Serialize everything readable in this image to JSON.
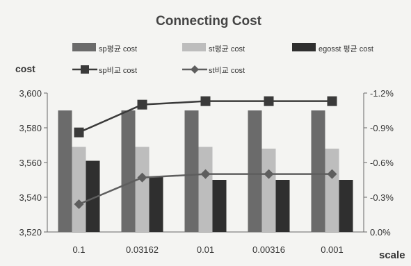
{
  "chart_data": {
    "type": "bar",
    "title": "Connecting Cost",
    "ylabel": "cost",
    "xlabel": "scale",
    "categories": [
      "0.1",
      "0.03162",
      "0.01",
      "0.00316",
      "0.001"
    ],
    "ylim": [
      3520,
      3600
    ],
    "y_ticks": [
      "3,520",
      "3,540",
      "3,560",
      "3,580",
      "3,600"
    ],
    "y2lim": [
      0.0,
      1.2
    ],
    "y2_ticks": [
      "0.0%",
      "-0.3%",
      "-0.6%",
      "-0.9%",
      "-1.2%"
    ],
    "series": [
      {
        "name": "sp평균 cost",
        "kind": "bar",
        "axis": "left",
        "color": "#6b6b6b",
        "values": [
          3590,
          3590,
          3590,
          3590,
          3590
        ]
      },
      {
        "name": "st평균 cost",
        "kind": "bar",
        "axis": "left",
        "color": "#bdbdbd",
        "values": [
          3569,
          3569,
          3569,
          3568,
          3568
        ]
      },
      {
        "name": "egosst 평균 cost",
        "kind": "bar",
        "axis": "left",
        "color": "#2f2f2f",
        "values": [
          3561,
          3552,
          3550,
          3550,
          3550
        ]
      },
      {
        "name": "sp비교 cost",
        "kind": "line",
        "marker": "square",
        "axis": "right",
        "color": "#3a3a3a",
        "values": [
          -0.86,
          -1.1,
          -1.13,
          -1.13,
          -1.13
        ]
      },
      {
        "name": "st비교 cost",
        "kind": "line",
        "marker": "diamond",
        "axis": "right",
        "color": "#5e5e5e",
        "values": [
          -0.24,
          -0.47,
          -0.5,
          -0.5,
          -0.5
        ]
      }
    ],
    "legend_position": "top",
    "grid": false
  }
}
